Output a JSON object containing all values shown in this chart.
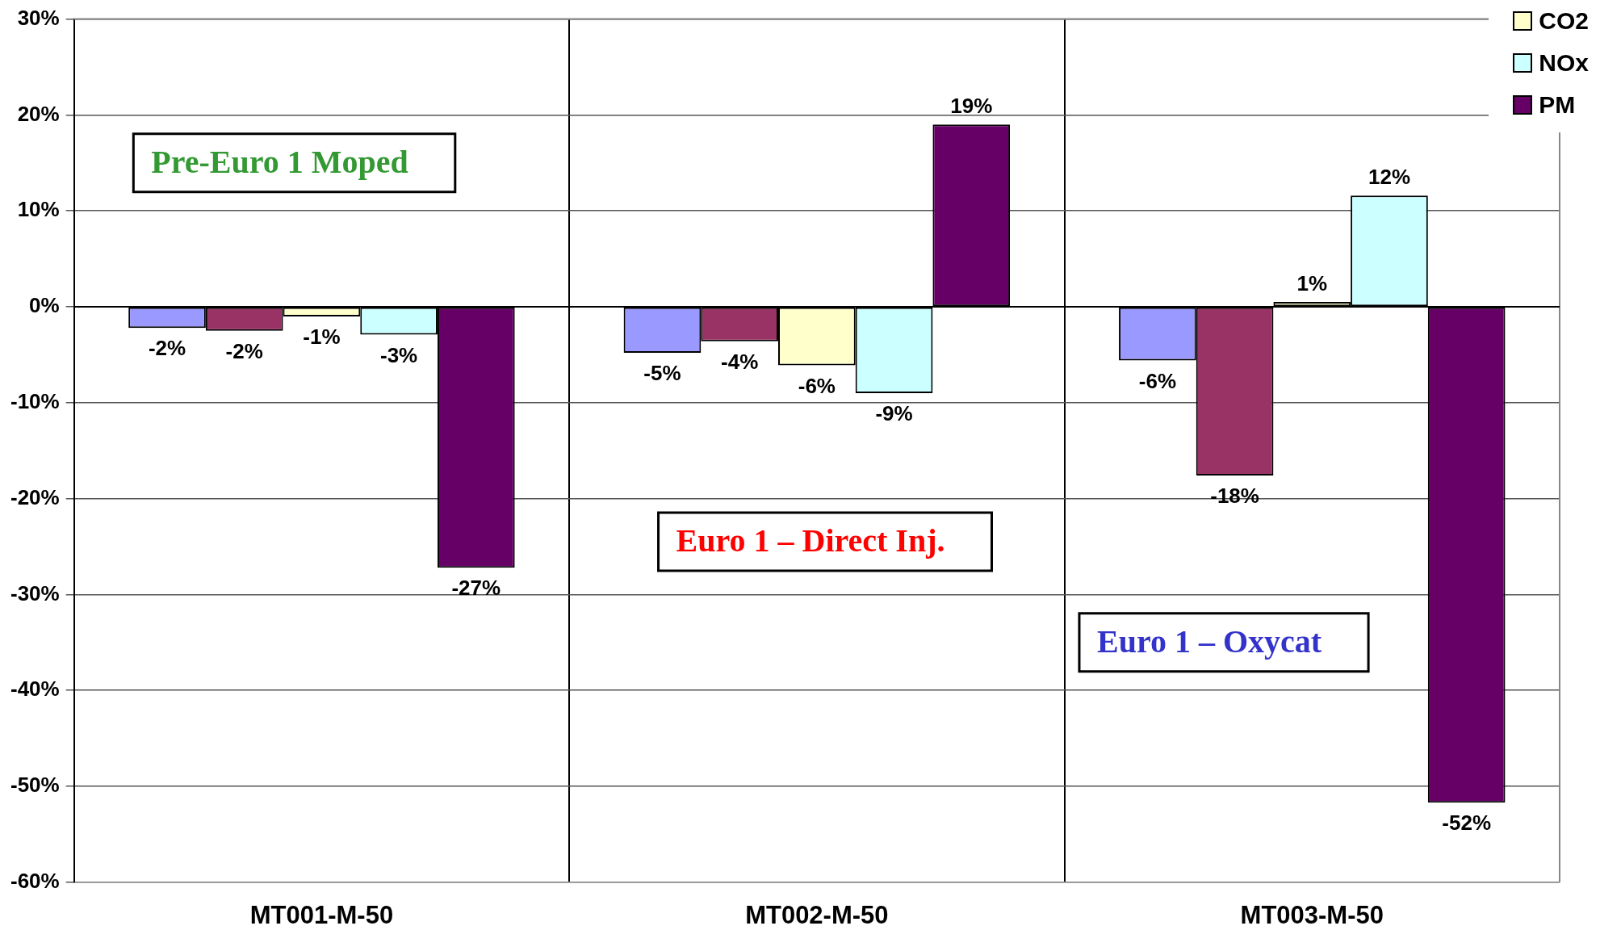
{
  "chart_data": {
    "type": "bar",
    "categories": [
      "MT001-M-50",
      "MT002-M-50",
      "MT003-M-50"
    ],
    "series": [
      {
        "color": "#9999ff",
        "values": [
          -2.2,
          -4.8,
          -5.6
        ],
        "value_labels": [
          "-2%",
          "-5%",
          "-6%"
        ]
      },
      {
        "color": "#993366",
        "values": [
          -2.5,
          -3.6,
          -17.6
        ],
        "value_labels": [
          "-2%",
          "-4%",
          "-18%"
        ]
      },
      {
        "name": "CO2",
        "color": "#ffffcc",
        "values": [
          -1.0,
          -6.1,
          0.5
        ],
        "value_labels": [
          "-1%",
          "-6%",
          "1%"
        ]
      },
      {
        "name": "NOx",
        "color": "#ccffff",
        "values": [
          -2.9,
          -9.0,
          11.6
        ],
        "value_labels": [
          "-3%",
          "-9%",
          "12%"
        ]
      },
      {
        "name": "PM",
        "color": "#660066",
        "values": [
          -27.2,
          19.0,
          -51.7
        ],
        "value_labels": [
          "-27%",
          "19%",
          "-52%"
        ]
      }
    ],
    "ylim": [
      -60,
      30
    ],
    "yticks": [
      {
        "value": -60,
        "label": "-60%"
      },
      {
        "value": -50,
        "label": "-50%"
      },
      {
        "value": -40,
        "label": "-40%"
      },
      {
        "value": -30,
        "label": "-30%"
      },
      {
        "value": -20,
        "label": "-20%"
      },
      {
        "value": -10,
        "label": "-10%"
      },
      {
        "value": 0,
        "label": "0%"
      },
      {
        "value": 10,
        "label": "10%"
      },
      {
        "value": 20,
        "label": "20%"
      },
      {
        "value": 30,
        "label": "30%"
      }
    ],
    "annotations": [
      "Pre-Euro 1 Moped",
      "Euro 1 – Direct Inj.",
      "Euro 1 – Oxycat"
    ],
    "grid": true,
    "legend": "top right"
  }
}
